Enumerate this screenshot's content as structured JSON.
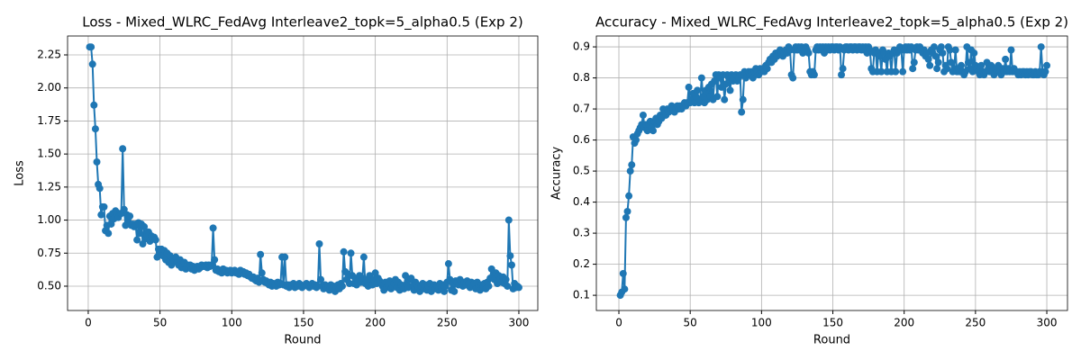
{
  "chart_data": [
    {
      "type": "line",
      "title": "Loss - Mixed_WLRC_FedAvg Interleave2_topk=5_alpha0.5 (Exp 2)",
      "xlabel": "Round",
      "ylabel": "Loss",
      "color": "#1f77b4",
      "grid": true,
      "xlim": [
        -14.4,
        313.2
      ],
      "ylim": [
        0.316,
        2.393
      ],
      "xticks": [
        0,
        50,
        100,
        150,
        200,
        250,
        300
      ],
      "yticks": [
        {
          "value": 0.5,
          "label": "0.50"
        },
        {
          "value": 0.75,
          "label": "0.75"
        },
        {
          "value": 1.0,
          "label": "1.00"
        },
        {
          "value": 1.25,
          "label": "1.25"
        },
        {
          "value": 1.5,
          "label": "1.50"
        },
        {
          "value": 1.75,
          "label": "1.75"
        },
        {
          "value": 2.0,
          "label": "2.00"
        },
        {
          "value": 2.25,
          "label": "2.25"
        }
      ],
      "x": [
        1,
        2,
        3,
        4,
        5,
        6,
        7,
        8,
        9,
        10,
        11,
        12,
        13,
        14,
        15,
        16,
        17,
        18,
        19,
        20,
        21,
        22,
        23,
        24,
        25,
        26,
        27,
        28,
        29,
        30,
        31,
        32,
        33,
        34,
        35,
        36,
        37,
        38,
        39,
        40,
        41,
        42,
        43,
        44,
        45,
        46,
        47,
        48,
        49,
        50,
        51,
        52,
        53,
        54,
        55,
        56,
        57,
        58,
        59,
        60,
        61,
        62,
        63,
        64,
        65,
        66,
        67,
        68,
        69,
        70,
        71,
        72,
        73,
        74,
        75,
        76,
        77,
        78,
        79,
        80,
        81,
        82,
        83,
        84,
        85,
        86,
        87,
        88,
        89,
        90,
        91,
        92,
        93,
        94,
        95,
        96,
        97,
        98,
        99,
        100,
        101,
        102,
        103,
        104,
        105,
        106,
        107,
        108,
        109,
        110,
        111,
        112,
        113,
        114,
        115,
        116,
        117,
        118,
        119,
        120,
        121,
        122,
        123,
        124,
        125,
        126,
        127,
        128,
        129,
        130,
        131,
        132,
        133,
        134,
        135,
        136,
        137,
        138,
        139,
        140,
        141,
        142,
        143,
        144,
        145,
        146,
        147,
        148,
        149,
        150,
        151,
        152,
        153,
        154,
        155,
        156,
        157,
        158,
        159,
        160,
        161,
        162,
        163,
        164,
        165,
        166,
        167,
        168,
        169,
        170,
        171,
        172,
        173,
        174,
        175,
        176,
        177,
        178,
        179,
        180,
        181,
        182,
        183,
        184,
        185,
        186,
        187,
        188,
        189,
        190,
        191,
        192,
        193,
        194,
        195,
        196,
        197,
        198,
        199,
        200,
        201,
        202,
        203,
        204,
        205,
        206,
        207,
        208,
        209,
        210,
        211,
        212,
        213,
        214,
        215,
        216,
        217,
        218,
        219,
        220,
        221,
        222,
        223,
        224,
        225,
        226,
        227,
        228,
        229,
        230,
        231,
        232,
        233,
        234,
        235,
        236,
        237,
        238,
        239,
        240,
        241,
        242,
        243,
        244,
        245,
        246,
        247,
        248,
        249,
        250,
        251,
        252,
        253,
        254,
        255,
        256,
        257,
        258,
        259,
        260,
        261,
        262,
        263,
        264,
        265,
        266,
        267,
        268,
        269,
        270,
        271,
        272,
        273,
        274,
        275,
        276,
        277,
        278,
        279,
        280,
        281,
        282,
        283,
        284,
        285,
        286,
        287,
        288,
        289,
        290,
        291,
        292,
        293,
        294,
        295,
        296,
        297,
        298,
        299,
        300
      ],
      "values": [
        2.31,
        2.31,
        2.18,
        1.87,
        1.69,
        1.44,
        1.27,
        1.24,
        1.04,
        1.1,
        1.1,
        0.92,
        0.96,
        0.9,
        1.03,
        0.97,
        1.05,
        1.01,
        1.07,
        1.04,
        1.02,
        1.05,
        1.05,
        1.54,
        1.08,
        0.96,
        1.04,
        0.98,
        1.03,
        0.96,
        0.97,
        0.95,
        0.97,
        0.85,
        0.98,
        0.9,
        0.97,
        0.82,
        0.95,
        0.86,
        0.89,
        0.91,
        0.84,
        0.88,
        0.86,
        0.87,
        0.85,
        0.72,
        0.78,
        0.74,
        0.78,
        0.73,
        0.77,
        0.7,
        0.75,
        0.68,
        0.73,
        0.66,
        0.71,
        0.69,
        0.72,
        0.68,
        0.66,
        0.7,
        0.64,
        0.67,
        0.68,
        0.63,
        0.66,
        0.65,
        0.66,
        0.63,
        0.65,
        0.62,
        0.64,
        0.65,
        0.63,
        0.64,
        0.66,
        0.65,
        0.65,
        0.66,
        0.64,
        0.66,
        0.65,
        0.66,
        0.94,
        0.7,
        0.62,
        0.63,
        0.61,
        0.62,
        0.6,
        0.63,
        0.61,
        0.62,
        0.6,
        0.61,
        0.62,
        0.6,
        0.61,
        0.62,
        0.6,
        0.61,
        0.59,
        0.62,
        0.6,
        0.61,
        0.59,
        0.6,
        0.58,
        0.59,
        0.57,
        0.56,
        0.57,
        0.55,
        0.54,
        0.56,
        0.53,
        0.74,
        0.6,
        0.55,
        0.53,
        0.54,
        0.52,
        0.51,
        0.53,
        0.5,
        0.52,
        0.51,
        0.5,
        0.53,
        0.51,
        0.52,
        0.72,
        0.51,
        0.72,
        0.5,
        0.51,
        0.49,
        0.51,
        0.5,
        0.52,
        0.49,
        0.51,
        0.5,
        0.52,
        0.51,
        0.49,
        0.5,
        0.51,
        0.52,
        0.5,
        0.49,
        0.51,
        0.52,
        0.5,
        0.51,
        0.49,
        0.5,
        0.82,
        0.55,
        0.5,
        0.48,
        0.51,
        0.49,
        0.5,
        0.47,
        0.51,
        0.48,
        0.5,
        0.46,
        0.49,
        0.51,
        0.48,
        0.52,
        0.5,
        0.76,
        0.61,
        0.55,
        0.59,
        0.52,
        0.75,
        0.58,
        0.52,
        0.56,
        0.51,
        0.54,
        0.58,
        0.53,
        0.56,
        0.72,
        0.52,
        0.55,
        0.5,
        0.58,
        0.53,
        0.51,
        0.55,
        0.6,
        0.52,
        0.56,
        0.54,
        0.52,
        0.5,
        0.47,
        0.53,
        0.49,
        0.51,
        0.54,
        0.48,
        0.5,
        0.52,
        0.55,
        0.49,
        0.53,
        0.47,
        0.51,
        0.5,
        0.48,
        0.58,
        0.52,
        0.49,
        0.55,
        0.56,
        0.5,
        0.47,
        0.53,
        0.51,
        0.49,
        0.46,
        0.5,
        0.52,
        0.48,
        0.51,
        0.47,
        0.5,
        0.52,
        0.46,
        0.49,
        0.51,
        0.48,
        0.5,
        0.47,
        0.52,
        0.49,
        0.51,
        0.46,
        0.5,
        0.53,
        0.67,
        0.55,
        0.47,
        0.52,
        0.46,
        0.54,
        0.53,
        0.51,
        0.55,
        0.52,
        0.5,
        0.53,
        0.51,
        0.54,
        0.52,
        0.49,
        0.53,
        0.5,
        0.52,
        0.48,
        0.53,
        0.5,
        0.47,
        0.51,
        0.49,
        0.52,
        0.48,
        0.53,
        0.5,
        0.56,
        0.63,
        0.58,
        0.55,
        0.6,
        0.52,
        0.58,
        0.55,
        0.53,
        0.57,
        0.52,
        0.55,
        0.5,
        1.0,
        0.73,
        0.66,
        0.48,
        0.52,
        0.49,
        0.5,
        0.49
      ]
    },
    {
      "type": "line",
      "title": "Accuracy - Mixed_WLRC_FedAvg Interleave2_topk=5_alpha0.5 (Exp 2)",
      "xlabel": "Round",
      "ylabel": "Accuracy",
      "color": "#1f77b4",
      "grid": true,
      "xlim": [
        -15.8,
        314.5
      ],
      "ylim": [
        0.051,
        0.935
      ],
      "xticks": [
        0,
        50,
        100,
        150,
        200,
        250,
        300
      ],
      "yticks": [
        0.1,
        0.2,
        0.3,
        0.4,
        0.5,
        0.6,
        0.7,
        0.8,
        0.9
      ],
      "x": [
        1,
        2,
        3,
        4,
        5,
        6,
        7,
        8,
        9,
        10,
        11,
        12,
        13,
        14,
        15,
        16,
        17,
        18,
        19,
        20,
        21,
        22,
        23,
        24,
        25,
        26,
        27,
        28,
        29,
        30,
        31,
        32,
        33,
        34,
        35,
        36,
        37,
        38,
        39,
        40,
        41,
        42,
        43,
        44,
        45,
        46,
        47,
        48,
        49,
        50,
        51,
        52,
        53,
        54,
        55,
        56,
        57,
        58,
        59,
        60,
        61,
        62,
        63,
        64,
        65,
        66,
        67,
        68,
        69,
        70,
        71,
        72,
        73,
        74,
        75,
        76,
        77,
        78,
        79,
        80,
        81,
        82,
        83,
        84,
        85,
        86,
        87,
        88,
        89,
        90,
        91,
        92,
        93,
        94,
        95,
        96,
        97,
        98,
        99,
        100,
        101,
        102,
        103,
        104,
        105,
        106,
        107,
        108,
        109,
        110,
        111,
        112,
        113,
        114,
        115,
        116,
        117,
        118,
        119,
        120,
        121,
        122,
        123,
        124,
        125,
        126,
        127,
        128,
        129,
        130,
        131,
        132,
        133,
        134,
        135,
        136,
        137,
        138,
        139,
        140,
        141,
        142,
        143,
        144,
        145,
        146,
        147,
        148,
        149,
        150,
        151,
        152,
        153,
        154,
        155,
        156,
        157,
        158,
        159,
        160,
        161,
        162,
        163,
        164,
        165,
        166,
        167,
        168,
        169,
        170,
        171,
        172,
        173,
        174,
        175,
        176,
        177,
        178,
        179,
        180,
        181,
        182,
        183,
        184,
        185,
        186,
        187,
        188,
        189,
        190,
        191,
        192,
        193,
        194,
        195,
        196,
        197,
        198,
        199,
        200,
        201,
        202,
        203,
        204,
        205,
        206,
        207,
        208,
        209,
        210,
        211,
        212,
        213,
        214,
        215,
        216,
        217,
        218,
        219,
        220,
        221,
        222,
        223,
        224,
        225,
        226,
        227,
        228,
        229,
        230,
        231,
        232,
        233,
        234,
        235,
        236,
        237,
        238,
        239,
        240,
        241,
        242,
        243,
        244,
        245,
        246,
        247,
        248,
        249,
        250,
        251,
        252,
        253,
        254,
        255,
        256,
        257,
        258,
        259,
        260,
        261,
        262,
        263,
        264,
        265,
        266,
        267,
        268,
        269,
        270,
        271,
        272,
        273,
        274,
        275,
        276,
        277,
        278,
        279,
        280,
        281,
        282,
        283,
        284,
        285,
        286,
        287,
        288,
        289,
        290,
        291,
        292,
        293,
        294,
        295,
        296,
        297,
        298,
        299,
        300
      ],
      "values": [
        0.1,
        0.11,
        0.17,
        0.12,
        0.35,
        0.37,
        0.42,
        0.5,
        0.52,
        0.61,
        0.59,
        0.6,
        0.62,
        0.63,
        0.64,
        0.65,
        0.68,
        0.64,
        0.65,
        0.63,
        0.65,
        0.66,
        0.64,
        0.63,
        0.66,
        0.67,
        0.65,
        0.66,
        0.68,
        0.67,
        0.7,
        0.69,
        0.68,
        0.7,
        0.69,
        0.7,
        0.71,
        0.7,
        0.69,
        0.7,
        0.71,
        0.7,
        0.71,
        0.7,
        0.71,
        0.72,
        0.71,
        0.72,
        0.77,
        0.72,
        0.73,
        0.75,
        0.72,
        0.74,
        0.76,
        0.72,
        0.73,
        0.8,
        0.74,
        0.72,
        0.76,
        0.73,
        0.77,
        0.74,
        0.78,
        0.73,
        0.79,
        0.81,
        0.74,
        0.81,
        0.8,
        0.77,
        0.81,
        0.73,
        0.78,
        0.81,
        0.8,
        0.76,
        0.81,
        0.79,
        0.8,
        0.81,
        0.79,
        0.8,
        0.81,
        0.69,
        0.73,
        0.82,
        0.8,
        0.81,
        0.82,
        0.81,
        0.82,
        0.8,
        0.82,
        0.83,
        0.82,
        0.81,
        0.83,
        0.82,
        0.83,
        0.82,
        0.84,
        0.83,
        0.85,
        0.86,
        0.85,
        0.87,
        0.86,
        0.88,
        0.87,
        0.88,
        0.89,
        0.88,
        0.87,
        0.88,
        0.89,
        0.88,
        0.9,
        0.89,
        0.81,
        0.8,
        0.89,
        0.9,
        0.89,
        0.9,
        0.89,
        0.9,
        0.88,
        0.89,
        0.9,
        0.89,
        0.88,
        0.82,
        0.81,
        0.82,
        0.81,
        0.89,
        0.9,
        0.89,
        0.9,
        0.89,
        0.9,
        0.88,
        0.9,
        0.89,
        0.9,
        0.89,
        0.9,
        0.9,
        0.89,
        0.9,
        0.9,
        0.89,
        0.9,
        0.81,
        0.83,
        0.89,
        0.9,
        0.9,
        0.89,
        0.9,
        0.9,
        0.89,
        0.9,
        0.9,
        0.89,
        0.9,
        0.9,
        0.89,
        0.9,
        0.89,
        0.9,
        0.88,
        0.9,
        0.89,
        0.83,
        0.82,
        0.88,
        0.89,
        0.82,
        0.88,
        0.87,
        0.82,
        0.89,
        0.88,
        0.86,
        0.82,
        0.88,
        0.87,
        0.82,
        0.88,
        0.89,
        0.82,
        0.88,
        0.89,
        0.9,
        0.89,
        0.82,
        0.89,
        0.9,
        0.89,
        0.9,
        0.89,
        0.9,
        0.83,
        0.85,
        0.89,
        0.9,
        0.89,
        0.9,
        0.89,
        0.88,
        0.89,
        0.87,
        0.88,
        0.86,
        0.84,
        0.89,
        0.88,
        0.9,
        0.87,
        0.83,
        0.85,
        0.89,
        0.9,
        0.88,
        0.82,
        0.84,
        0.83,
        0.9,
        0.89,
        0.85,
        0.82,
        0.83,
        0.89,
        0.82,
        0.83,
        0.82,
        0.84,
        0.82,
        0.81,
        0.82,
        0.9,
        0.85,
        0.83,
        0.89,
        0.82,
        0.88,
        0.84,
        0.83,
        0.82,
        0.81,
        0.84,
        0.82,
        0.81,
        0.82,
        0.85,
        0.83,
        0.82,
        0.84,
        0.82,
        0.81,
        0.83,
        0.82,
        0.84,
        0.82,
        0.81,
        0.83,
        0.82,
        0.86,
        0.82,
        0.83,
        0.82,
        0.89,
        0.82,
        0.83,
        0.82,
        0.82,
        0.81,
        0.82,
        0.81,
        0.82,
        0.82,
        0.81,
        0.82,
        0.81,
        0.82,
        0.82,
        0.81,
        0.81,
        0.82,
        0.81,
        0.81,
        0.82,
        0.9,
        0.82,
        0.81,
        0.82,
        0.84
      ]
    }
  ]
}
